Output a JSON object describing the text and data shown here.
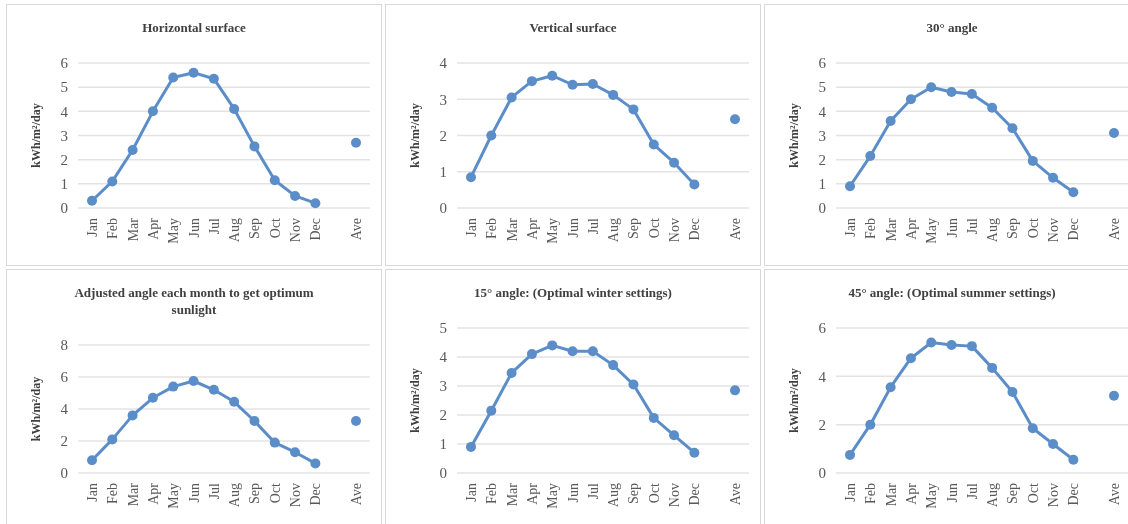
{
  "chart_data": [
    {
      "type": "line",
      "title": "Horizontal surface",
      "ylabel": "kWh/m²/day",
      "categories": [
        "Jan",
        "Feb",
        "Mar",
        "Apr",
        "May",
        "Jun",
        "Jul",
        "Aug",
        "Sep",
        "Oct",
        "Nov",
        "Dec",
        null,
        "Ave"
      ],
      "ylim": [
        0,
        6
      ],
      "yticks": [
        0,
        1,
        2,
        3,
        4,
        5,
        6
      ],
      "grid": "y",
      "marker": "circle",
      "line_style": "solid",
      "series": [
        {
          "color": "#5b8ec9",
          "values": [
            0.3,
            1.1,
            2.4,
            4.0,
            5.4,
            5.6,
            5.35,
            4.1,
            2.55,
            1.15,
            0.5,
            0.2,
            null,
            null
          ]
        },
        {
          "type": "scatter",
          "color": "#5b8ec9",
          "values": [
            null,
            null,
            null,
            null,
            null,
            null,
            null,
            null,
            null,
            null,
            null,
            null,
            null,
            2.7
          ]
        }
      ]
    },
    {
      "type": "line",
      "title": "Vertical surface",
      "ylabel": "kWh/m²/day",
      "categories": [
        "Jan",
        "Feb",
        "Mar",
        "Apr",
        "May",
        "Jun",
        "Jul",
        "Aug",
        "Sep",
        "Oct",
        "Nov",
        "Dec",
        null,
        "Ave"
      ],
      "ylim": [
        0,
        4
      ],
      "yticks": [
        0,
        1,
        2,
        3,
        4
      ],
      "grid": "y",
      "marker": "circle",
      "line_style": "solid",
      "series": [
        {
          "color": "#5b8ec9",
          "values": [
            0.85,
            2.0,
            3.05,
            3.5,
            3.65,
            3.4,
            3.42,
            3.12,
            2.72,
            1.75,
            1.25,
            0.65,
            null,
            null
          ]
        },
        {
          "type": "scatter",
          "color": "#5b8ec9",
          "values": [
            null,
            null,
            null,
            null,
            null,
            null,
            null,
            null,
            null,
            null,
            null,
            null,
            null,
            2.45
          ]
        }
      ]
    },
    {
      "type": "line",
      "title": "30° angle",
      "ylabel": "kWh/m²/day",
      "categories": [
        "Jan",
        "Feb",
        "Mar",
        "Apr",
        "May",
        "Jun",
        "Jul",
        "Aug",
        "Sep",
        "Oct",
        "Nov",
        "Dec",
        null,
        "Ave"
      ],
      "ylim": [
        0,
        6
      ],
      "yticks": [
        0,
        1,
        2,
        3,
        4,
        5,
        6
      ],
      "grid": "y",
      "marker": "circle",
      "line_style": "solid",
      "series": [
        {
          "color": "#5b8ec9",
          "values": [
            0.9,
            2.15,
            3.6,
            4.5,
            5.0,
            4.8,
            4.72,
            4.15,
            3.3,
            1.95,
            1.25,
            0.65,
            null,
            null
          ]
        },
        {
          "type": "scatter",
          "color": "#5b8ec9",
          "values": [
            null,
            null,
            null,
            null,
            null,
            null,
            null,
            null,
            null,
            null,
            null,
            null,
            null,
            3.1
          ]
        }
      ]
    },
    {
      "type": "line",
      "title": "Adjusted angle each month to get optimum sunlight",
      "ylabel": "kWh/m²/day",
      "categories": [
        "Jan",
        "Feb",
        "Mar",
        "Apr",
        "May",
        "Jun",
        "Jul",
        "Aug",
        "Sep",
        "Oct",
        "Nov",
        "Dec",
        null,
        "Ave"
      ],
      "ylim": [
        0,
        8
      ],
      "yticks": [
        0,
        2,
        4,
        6,
        8
      ],
      "grid": "y",
      "marker": "circle",
      "line_style": "solid",
      "series": [
        {
          "color": "#5b8ec9",
          "values": [
            0.8,
            2.1,
            3.6,
            4.7,
            5.4,
            5.75,
            5.2,
            4.45,
            3.25,
            1.9,
            1.3,
            0.6,
            null,
            null
          ]
        },
        {
          "type": "scatter",
          "color": "#5b8ec9",
          "values": [
            null,
            null,
            null,
            null,
            null,
            null,
            null,
            null,
            null,
            null,
            null,
            null,
            null,
            3.25
          ]
        }
      ]
    },
    {
      "type": "line",
      "title": "15° angle: (Optimal winter settings)",
      "ylabel": "kWh/m²/day",
      "categories": [
        "Jan",
        "Feb",
        "Mar",
        "Apr",
        "May",
        "Jun",
        "Jul",
        "Aug",
        "Sep",
        "Oct",
        "Nov",
        "Dec",
        null,
        "Ave"
      ],
      "ylim": [
        0,
        5
      ],
      "yticks": [
        0,
        1,
        2,
        3,
        4,
        5
      ],
      "grid": "y",
      "marker": "circle",
      "line_style": "solid",
      "series": [
        {
          "color": "#5b8ec9",
          "values": [
            0.9,
            2.15,
            3.45,
            4.1,
            4.4,
            4.2,
            4.2,
            3.72,
            3.05,
            1.9,
            1.3,
            0.7,
            null,
            null
          ]
        },
        {
          "type": "scatter",
          "color": "#5b8ec9",
          "values": [
            null,
            null,
            null,
            null,
            null,
            null,
            null,
            null,
            null,
            null,
            null,
            null,
            null,
            2.85
          ]
        }
      ]
    },
    {
      "type": "line",
      "title": "45° angle: (Optimal summer settings)",
      "ylabel": "kWh/m²/day",
      "categories": [
        "Jan",
        "Feb",
        "Mar",
        "Apr",
        "May",
        "Jun",
        "Jul",
        "Aug",
        "Sep",
        "Oct",
        "Nov",
        "Dec",
        null,
        "Ave"
      ],
      "ylim": [
        0,
        6
      ],
      "yticks": [
        0,
        2,
        4,
        6
      ],
      "grid": "y",
      "marker": "circle",
      "line_style": "solid",
      "series": [
        {
          "color": "#5b8ec9",
          "values": [
            0.75,
            2.0,
            3.55,
            4.75,
            5.4,
            5.3,
            5.25,
            4.35,
            3.35,
            1.85,
            1.2,
            0.55,
            null,
            null
          ]
        },
        {
          "type": "scatter",
          "color": "#5b8ec9",
          "values": [
            null,
            null,
            null,
            null,
            null,
            null,
            null,
            null,
            null,
            null,
            null,
            null,
            null,
            3.2
          ]
        }
      ]
    }
  ]
}
